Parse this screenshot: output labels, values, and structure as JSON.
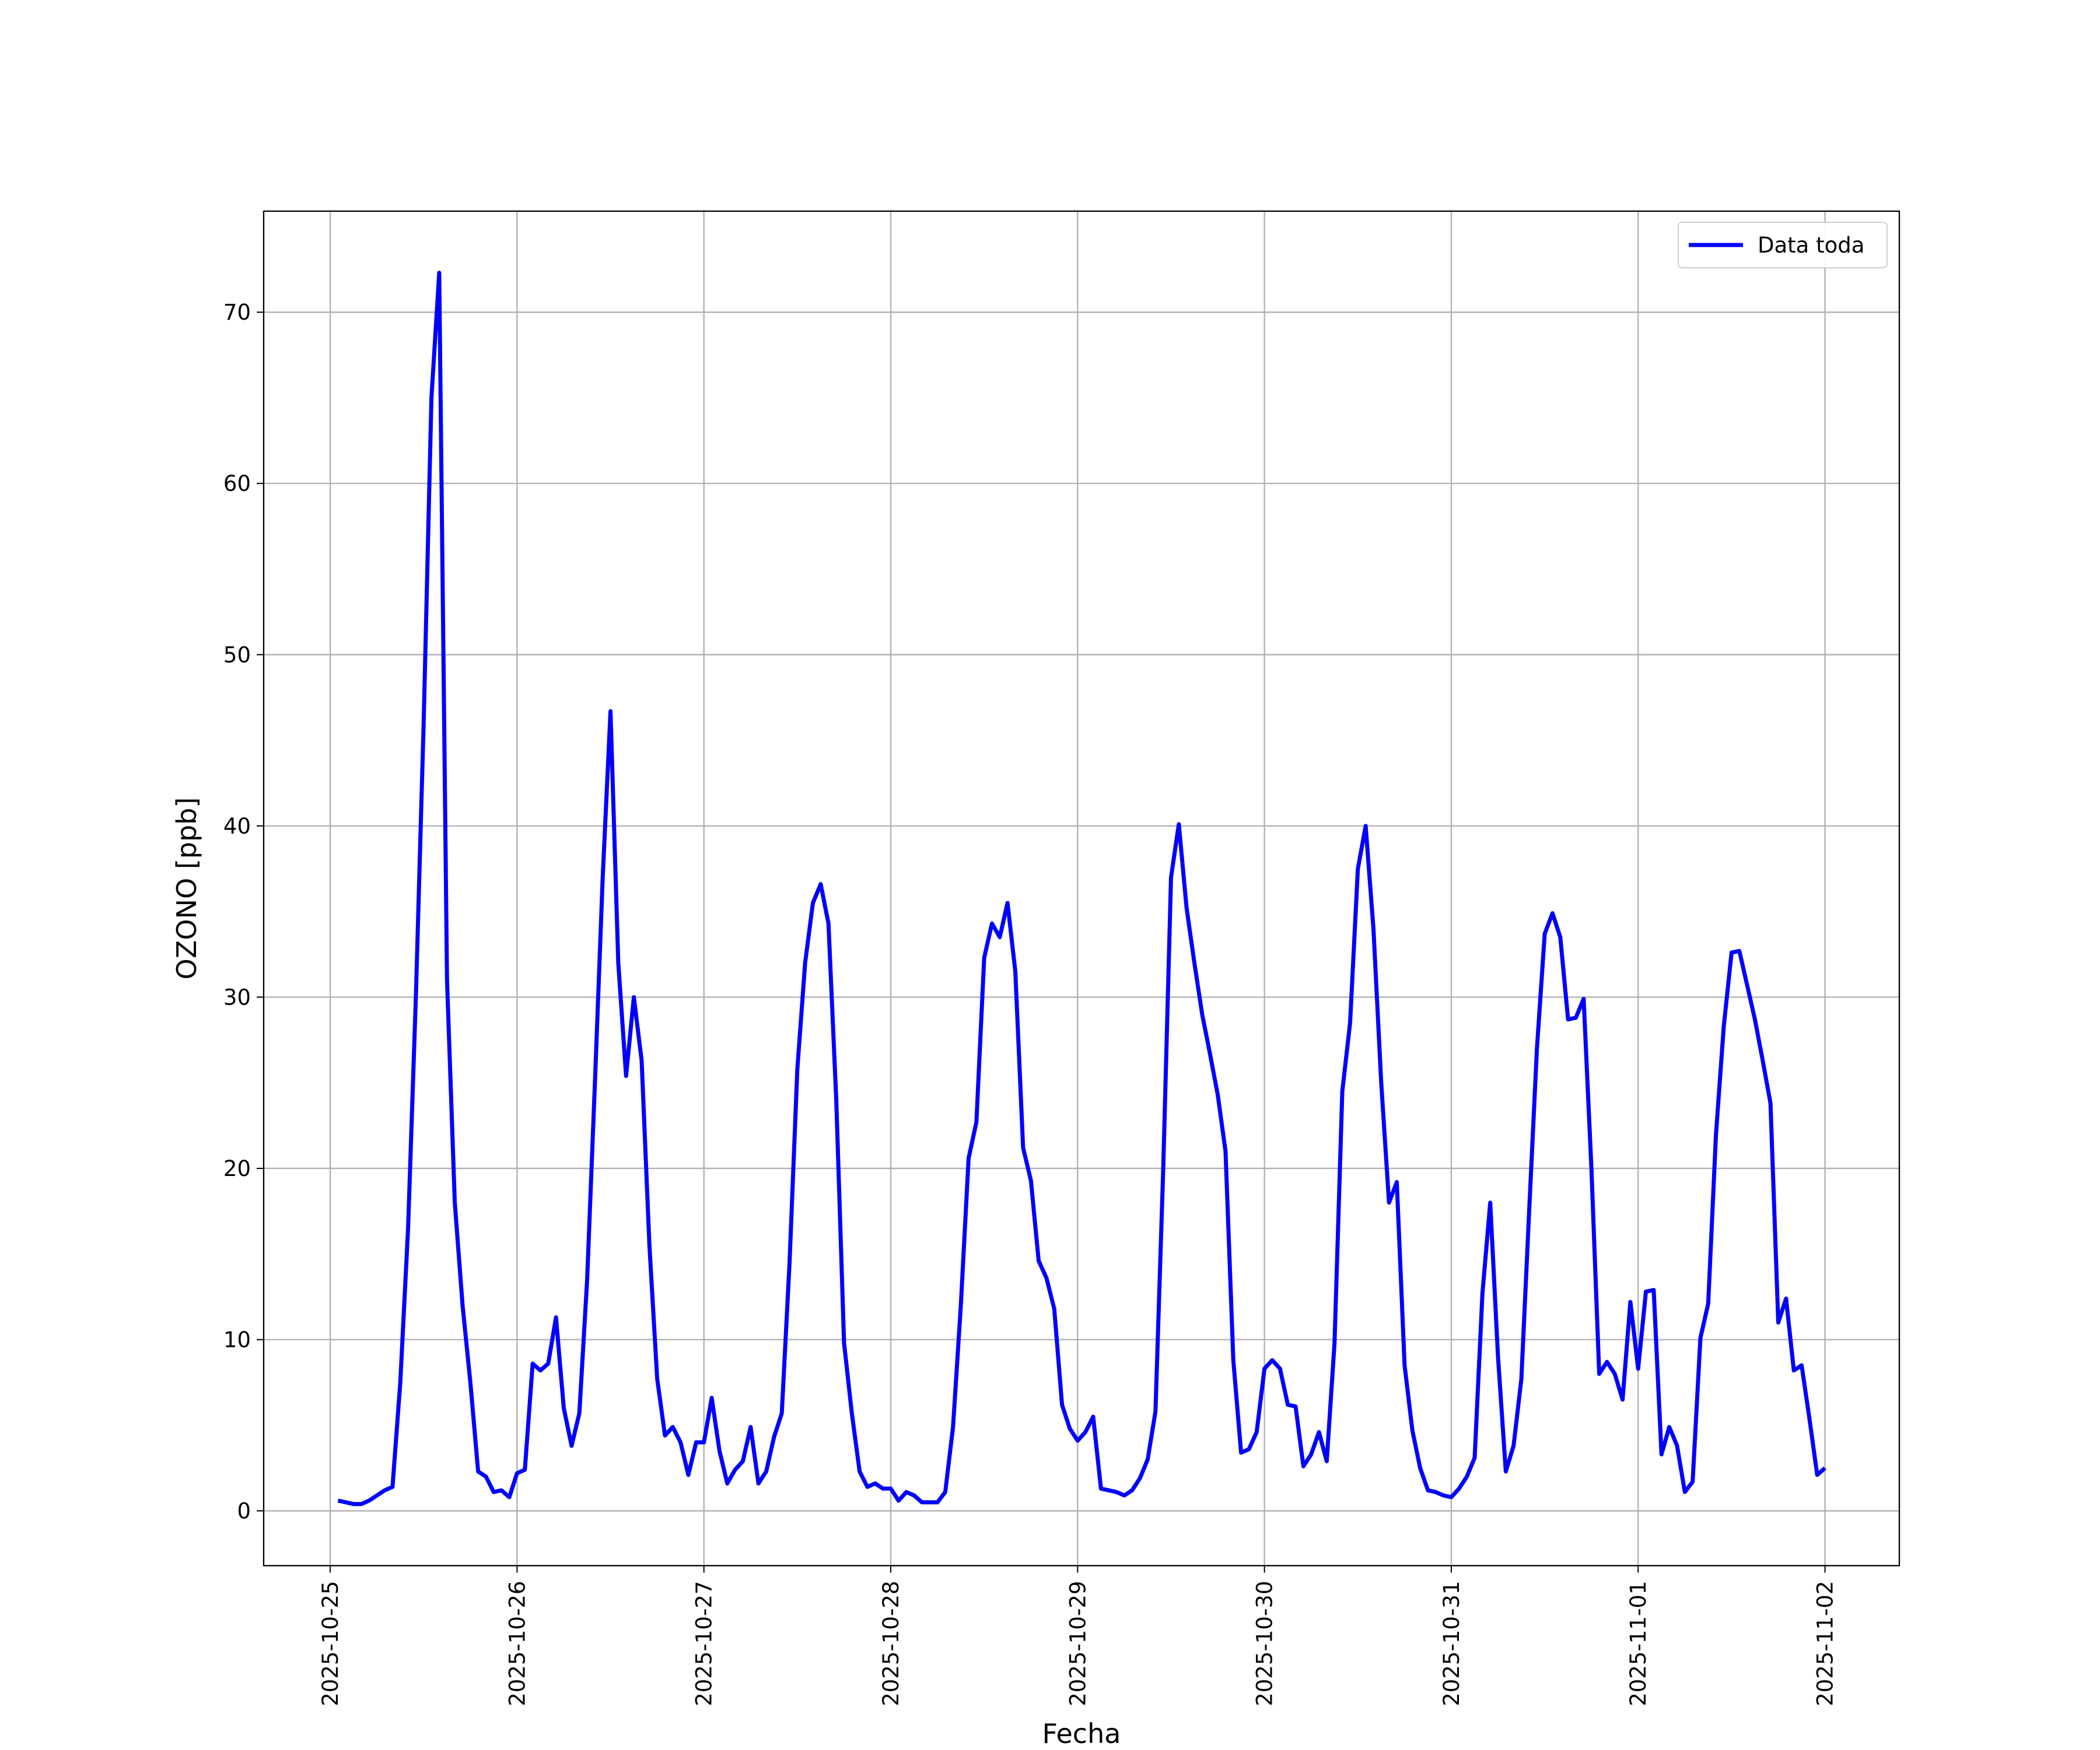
{
  "chart_data": {
    "type": "line",
    "xlabel": "Fecha",
    "ylabel": "OZONO [ppb]",
    "x": [
      "2025-10-25 01:00",
      "2025-10-25 02:00",
      "2025-10-25 03:00",
      "2025-10-25 04:00",
      "2025-10-25 05:00",
      "2025-10-25 06:00",
      "2025-10-25 07:00",
      "2025-10-25 08:00",
      "2025-10-25 09:00",
      "2025-10-25 10:00",
      "2025-10-25 11:00",
      "2025-10-25 12:00",
      "2025-10-25 13:00",
      "2025-10-25 14:00",
      "2025-10-25 15:00",
      "2025-10-25 16:00",
      "2025-10-25 17:00",
      "2025-10-25 18:00",
      "2025-10-25 19:00",
      "2025-10-25 20:00",
      "2025-10-25 21:00",
      "2025-10-25 22:00",
      "2025-10-25 23:00",
      "2025-10-26 00:00",
      "2025-10-26 01:00",
      "2025-10-26 02:00",
      "2025-10-26 03:00",
      "2025-10-26 04:00",
      "2025-10-26 05:00",
      "2025-10-26 06:00",
      "2025-10-26 07:00",
      "2025-10-26 08:00",
      "2025-10-26 09:00",
      "2025-10-26 10:00",
      "2025-10-26 11:00",
      "2025-10-26 12:00",
      "2025-10-26 13:00",
      "2025-10-26 14:00",
      "2025-10-26 15:00",
      "2025-10-26 16:00",
      "2025-10-26 17:00",
      "2025-10-26 18:00",
      "2025-10-26 19:00",
      "2025-10-26 20:00",
      "2025-10-26 21:00",
      "2025-10-26 22:00",
      "2025-10-26 23:00",
      "2025-10-27 00:00",
      "2025-10-27 01:00",
      "2025-10-27 02:00",
      "2025-10-27 03:00",
      "2025-10-27 04:00",
      "2025-10-27 05:00",
      "2025-10-27 06:00",
      "2025-10-27 07:00",
      "2025-10-27 08:00",
      "2025-10-27 09:00",
      "2025-10-27 10:00",
      "2025-10-27 11:00",
      "2025-10-27 12:00",
      "2025-10-27 13:00",
      "2025-10-27 14:00",
      "2025-10-27 15:00",
      "2025-10-27 16:00",
      "2025-10-27 17:00",
      "2025-10-27 18:00",
      "2025-10-27 19:00",
      "2025-10-27 20:00",
      "2025-10-27 21:00",
      "2025-10-27 22:00",
      "2025-10-27 23:00",
      "2025-10-28 00:00",
      "2025-10-28 01:00",
      "2025-10-28 02:00",
      "2025-10-28 03:00",
      "2025-10-28 04:00",
      "2025-10-28 05:00",
      "2025-10-28 06:00",
      "2025-10-28 07:00",
      "2025-10-28 08:00",
      "2025-10-28 09:00",
      "2025-10-28 10:00",
      "2025-10-28 11:00",
      "2025-10-28 12:00",
      "2025-10-28 13:00",
      "2025-10-28 14:00",
      "2025-10-28 15:00",
      "2025-10-28 16:00",
      "2025-10-28 17:00",
      "2025-10-28 18:00",
      "2025-10-28 19:00",
      "2025-10-28 20:00",
      "2025-10-28 21:00",
      "2025-10-28 22:00",
      "2025-10-28 23:00",
      "2025-10-29 00:00",
      "2025-10-29 01:00",
      "2025-10-29 02:00",
      "2025-10-29 03:00",
      "2025-10-29 04:00",
      "2025-10-29 05:00",
      "2025-10-29 06:00",
      "2025-10-29 07:00",
      "2025-10-29 08:00",
      "2025-10-29 09:00",
      "2025-10-29 10:00",
      "2025-10-29 11:00",
      "2025-10-29 12:00",
      "2025-10-29 13:00",
      "2025-10-29 14:00",
      "2025-10-29 15:00",
      "2025-10-29 16:00",
      "2025-10-29 17:00",
      "2025-10-29 18:00",
      "2025-10-29 19:00",
      "2025-10-29 20:00",
      "2025-10-29 21:00",
      "2025-10-29 22:00",
      "2025-10-29 23:00",
      "2025-10-30 00:00",
      "2025-10-30 01:00",
      "2025-10-30 02:00",
      "2025-10-30 03:00",
      "2025-10-30 04:00",
      "2025-10-30 05:00",
      "2025-10-30 06:00",
      "2025-10-30 07:00",
      "2025-10-30 08:00",
      "2025-10-30 09:00",
      "2025-10-30 10:00",
      "2025-10-30 11:00",
      "2025-10-30 12:00",
      "2025-10-30 13:00",
      "2025-10-30 14:00",
      "2025-10-30 15:00",
      "2025-10-30 16:00",
      "2025-10-30 17:00",
      "2025-10-30 18:00",
      "2025-10-30 19:00",
      "2025-10-30 20:00",
      "2025-10-30 21:00",
      "2025-10-30 22:00",
      "2025-10-30 23:00",
      "2025-10-31 00:00",
      "2025-10-31 01:00",
      "2025-10-31 02:00",
      "2025-10-31 03:00",
      "2025-10-31 04:00",
      "2025-10-31 05:00",
      "2025-10-31 06:00",
      "2025-10-31 07:00",
      "2025-10-31 08:00",
      "2025-10-31 09:00",
      "2025-10-31 10:00",
      "2025-10-31 11:00",
      "2025-10-31 12:00",
      "2025-10-31 13:00",
      "2025-10-31 14:00",
      "2025-10-31 15:00",
      "2025-10-31 16:00",
      "2025-10-31 17:00",
      "2025-10-31 18:00",
      "2025-10-31 19:00",
      "2025-10-31 20:00",
      "2025-10-31 21:00",
      "2025-10-31 22:00",
      "2025-10-31 23:00",
      "2025-11-01 00:00",
      "2025-11-01 01:00",
      "2025-11-01 02:00",
      "2025-11-01 03:00",
      "2025-11-01 04:00",
      "2025-11-01 05:00",
      "2025-11-01 06:00",
      "2025-11-01 07:00",
      "2025-11-01 08:00",
      "2025-11-01 09:00",
      "2025-11-01 10:00",
      "2025-11-01 11:00",
      "2025-11-01 12:00",
      "2025-11-01 13:00",
      "2025-11-01 14:00",
      "2025-11-01 15:00",
      "2025-11-01 16:00",
      "2025-11-01 17:00",
      "2025-11-01 18:00",
      "2025-11-01 19:00",
      "2025-11-01 20:00",
      "2025-11-01 21:00",
      "2025-11-01 22:00",
      "2025-11-01 23:00",
      "2025-11-02 00:00"
    ],
    "series": [
      {
        "name": "Data toda",
        "color": "#0000ff",
        "values": [
          0.6,
          0.5,
          0.4,
          0.4,
          0.6,
          0.9,
          1.2,
          1.4,
          7.5,
          16.5,
          30,
          46,
          65,
          72.3,
          31,
          18,
          12,
          7.5,
          2.3,
          2,
          1.1,
          1.2,
          0.8,
          2.2,
          2.4,
          8.6,
          8.2,
          8.6,
          11.3,
          6,
          3.8,
          5.7,
          13.5,
          25,
          37,
          46.7,
          32,
          25.4,
          30,
          26.3,
          15.5,
          7.7,
          4.4,
          4.9,
          4,
          2.1,
          4,
          4,
          6.6,
          3.5,
          1.6,
          2.4,
          2.9,
          4.9,
          1.6,
          2.3,
          4.3,
          5.7,
          14.5,
          25.8,
          32,
          35.5,
          36.6,
          34.3,
          24,
          9.8,
          5.7,
          2.3,
          1.4,
          1.6,
          1.3,
          1.3,
          0.6,
          1.1,
          0.9,
          0.5,
          0.5,
          0.5,
          1.1,
          4.9,
          12,
          20.6,
          22.7,
          32.3,
          34.3,
          33.5,
          35.5,
          31.5,
          21.2,
          19.3,
          14.6,
          13.6,
          11.8,
          6.2,
          4.8,
          4.1,
          4.6,
          5.5,
          1.3,
          1.2,
          1.1,
          0.9,
          1.2,
          1.9,
          3,
          5.8,
          20,
          37,
          40.1,
          35.2,
          32,
          29,
          26.7,
          24.3,
          21,
          8.8,
          3.4,
          3.6,
          4.6,
          8.3,
          8.8,
          8.3,
          6.2,
          6.1,
          2.6,
          3.3,
          4.6,
          2.9,
          9.8,
          24.5,
          28.5,
          37.5,
          40,
          34,
          25,
          18,
          19.2,
          8.5,
          4.7,
          2.5,
          1.2,
          1.1,
          0.9,
          0.8,
          1.3,
          2,
          3.1,
          12.7,
          18,
          9,
          2.3,
          3.8,
          7.7,
          17.5,
          27,
          33.7,
          34.9,
          33.5,
          28.7,
          28.8,
          29.9,
          20,
          8,
          8.7,
          8,
          6.5,
          12.2,
          8.3,
          12.8,
          12.9,
          3.3,
          4.9,
          3.8,
          1.1,
          1.7,
          10.1,
          12.1,
          22,
          28.3,
          32.6,
          32.7,
          30.7,
          28.7,
          26.3,
          23.8,
          11,
          12.4,
          8.2,
          8.5,
          5.4,
          2.1,
          2.5
        ]
      }
    ],
    "xlim": [
      "2025-10-24 15:27",
      "2025-11-02 09:33"
    ],
    "xticks": [
      {
        "value": "2025-10-25 00:00",
        "label": "2025-10-25"
      },
      {
        "value": "2025-10-26 00:00",
        "label": "2025-10-26"
      },
      {
        "value": "2025-10-27 00:00",
        "label": "2025-10-27"
      },
      {
        "value": "2025-10-28 00:00",
        "label": "2025-10-28"
      },
      {
        "value": "2025-10-29 00:00",
        "label": "2025-10-29"
      },
      {
        "value": "2025-10-30 00:00",
        "label": "2025-10-30"
      },
      {
        "value": "2025-10-31 00:00",
        "label": "2025-10-31"
      },
      {
        "value": "2025-11-01 00:00",
        "label": "2025-11-01"
      },
      {
        "value": "2025-11-02 00:00",
        "label": "2025-11-02"
      }
    ],
    "ylim": [
      -3.2,
      75.9
    ],
    "yticks": [
      0,
      10,
      20,
      30,
      40,
      50,
      60,
      70
    ],
    "grid": true,
    "legend": "upper right"
  }
}
